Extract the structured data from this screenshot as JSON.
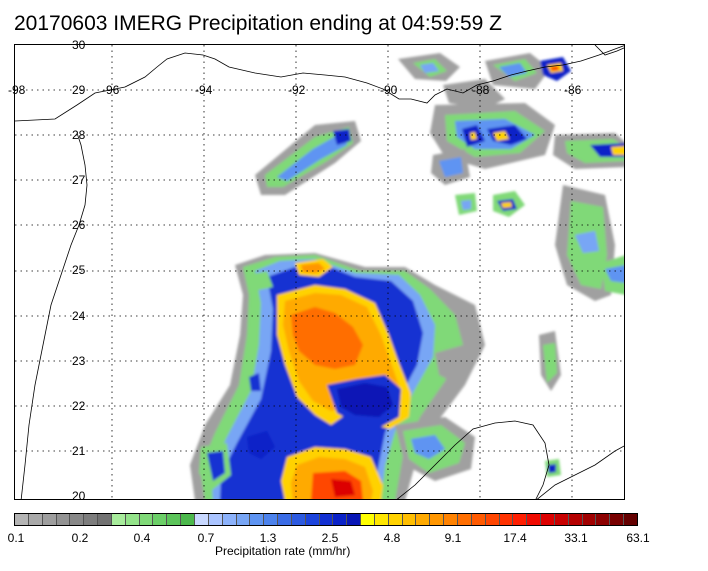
{
  "title": "20170603 IMERG Precipitation ending at 04:59:59 Z",
  "map": {
    "longitude_labels": [
      "-98",
      "-96",
      "-94",
      "-92",
      "-90",
      "-88",
      "-86"
    ],
    "latitude_labels": [
      "30",
      "29",
      "28",
      "27",
      "26",
      "25",
      "24",
      "23",
      "22",
      "21",
      "20"
    ],
    "gridline_style": "dotted",
    "coastline_color": "#000000"
  },
  "legend": {
    "title": "Precipitation rate (mm/hr)",
    "tick_labels": [
      "0.1",
      "0.2",
      "0.4",
      "0.7",
      "1.3",
      "2.5",
      "4.8",
      "9.1",
      "17.4",
      "33.1",
      "63.1"
    ],
    "colors": [
      "#b4b4b4",
      "#a9a9a9",
      "#9e9e9e",
      "#939393",
      "#888888",
      "#7d7d7d",
      "#727272",
      "#a8ec9c",
      "#94e38a",
      "#80d978",
      "#6ccf68",
      "#5cc45a",
      "#4cb84c",
      "#c8d8ff",
      "#aac4ff",
      "#8cb2fb",
      "#78a6f5",
      "#5e94f2",
      "#4c82ec",
      "#3a6ce6",
      "#2c5ae0",
      "#1c44dc",
      "#1230d2",
      "#0a22c8",
      "#0816b6",
      "#ffff00",
      "#ffe600",
      "#ffd200",
      "#ffbe00",
      "#ffaa00",
      "#ff9600",
      "#ff8200",
      "#ff6e00",
      "#ff5a00",
      "#ff4600",
      "#ff3200",
      "#ff1e00",
      "#f00a00",
      "#dc0000",
      "#c80000",
      "#b40000",
      "#a00000",
      "#8c0000",
      "#780000",
      "#640000"
    ]
  }
}
